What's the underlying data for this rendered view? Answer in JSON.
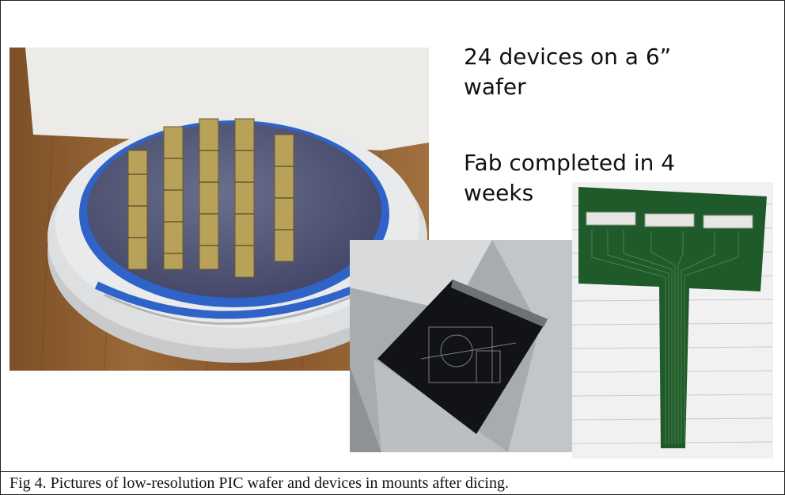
{
  "slide": {
    "text_block_1": [
      "24 devices on a 6”",
      "wafer"
    ],
    "text_block_2": [
      "Fab completed in 4",
      "weeks"
    ]
  },
  "caption": "Fig 4. Pictures of low-resolution PIC wafer and devices in mounts after dicing.",
  "colors": {
    "wafer_blue": "#2f63c8",
    "pcb_green": "#1f5a2a",
    "wood": "#8a5a2e",
    "metal": "#b9bcbf"
  }
}
